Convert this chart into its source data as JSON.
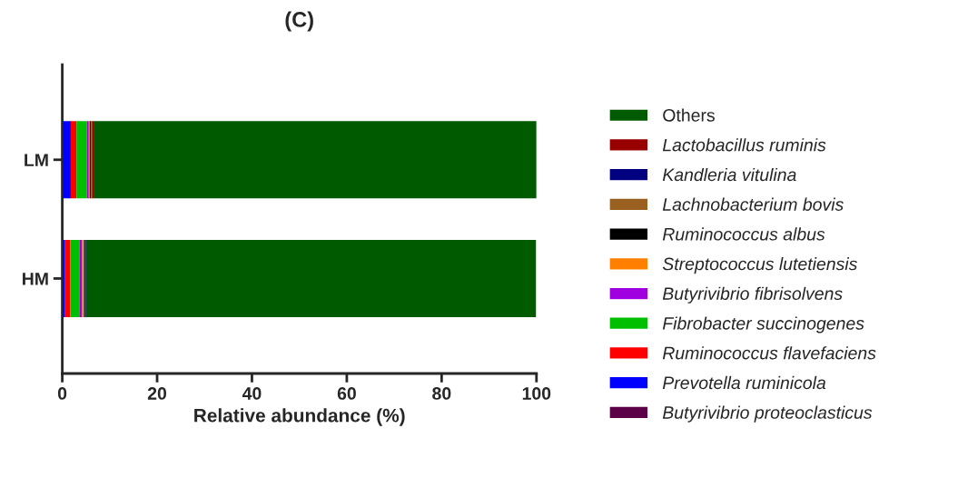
{
  "chart_data": {
    "type": "bar",
    "orientation": "horizontal",
    "stacked": true,
    "title": "(C)",
    "xlabel": "Relative abundance (%)",
    "categories": [
      "LM",
      "HM"
    ],
    "xlim": [
      0,
      100
    ],
    "xticks": [
      0,
      20,
      40,
      60,
      80,
      100
    ],
    "grid": false,
    "legend": "right",
    "series": [
      {
        "name": "Butyrivibrio proteoclasticus",
        "color": "#5c0048",
        "values": [
          0.1,
          0.1
        ]
      },
      {
        "name": "Prevotella ruminicola",
        "color": "#0000ff",
        "values": [
          1.7,
          0.5
        ]
      },
      {
        "name": "Ruminococcus flavefaciens",
        "color": "#ff0000",
        "values": [
          1.2,
          1.1
        ]
      },
      {
        "name": "Fibrobacter succinogenes",
        "color": "#00bf00",
        "values": [
          2.2,
          2.0
        ]
      },
      {
        "name": "Butyrivibrio fibrisolvens",
        "color": "#a000e0",
        "values": [
          0.4,
          0.5
        ]
      },
      {
        "name": "Streptococcus lutetiensis",
        "color": "#ff8000",
        "values": [
          0.2,
          0.3
        ]
      },
      {
        "name": "Ruminococcus albus",
        "color": "#000000",
        "values": [
          0.3,
          0.1
        ]
      },
      {
        "name": "Lachnobacterium bovis",
        "color": "#996020",
        "values": [
          0.1,
          0.1
        ]
      },
      {
        "name": "Kandleria vitulina",
        "color": "#000080",
        "values": [
          0.1,
          0.3
        ]
      },
      {
        "name": "Lactobacillus ruminis",
        "color": "#990000",
        "values": [
          0.3,
          null
        ]
      },
      {
        "name": "Others",
        "color": "#005a00",
        "values": [
          93.4,
          94.9
        ]
      }
    ]
  }
}
